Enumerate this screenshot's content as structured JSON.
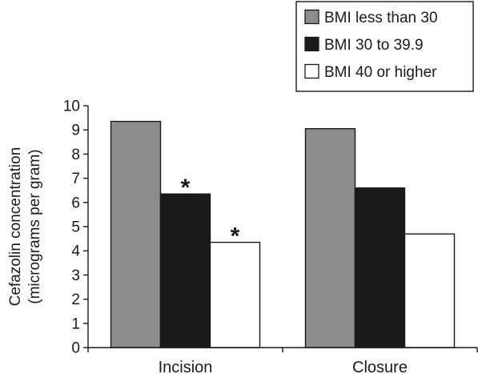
{
  "chart_data": {
    "type": "bar",
    "categories": [
      "Incision",
      "Closure"
    ],
    "series": [
      {
        "name": "BMI less than 30",
        "color": "#8c8c8d",
        "values": [
          9.35,
          9.05
        ]
      },
      {
        "name": "BMI 30 to 39.9",
        "color": "#1a1a1a",
        "values": [
          6.35,
          6.6
        ]
      },
      {
        "name": "BMI 40 or higher",
        "color": "#ffffff",
        "values": [
          4.35,
          4.7
        ]
      }
    ],
    "ylabel_lines": [
      "Cefazolin concentration",
      "(micrograms per gram)"
    ],
    "ylim": [
      0,
      10
    ],
    "yticks": [
      0,
      1,
      2,
      3,
      4,
      5,
      6,
      7,
      8,
      9,
      10
    ],
    "grid": false,
    "legend_position": "top-right",
    "annotations": [
      {
        "text": "*",
        "category": 0,
        "series": 1
      },
      {
        "text": "*",
        "category": 0,
        "series": 2
      }
    ]
  }
}
